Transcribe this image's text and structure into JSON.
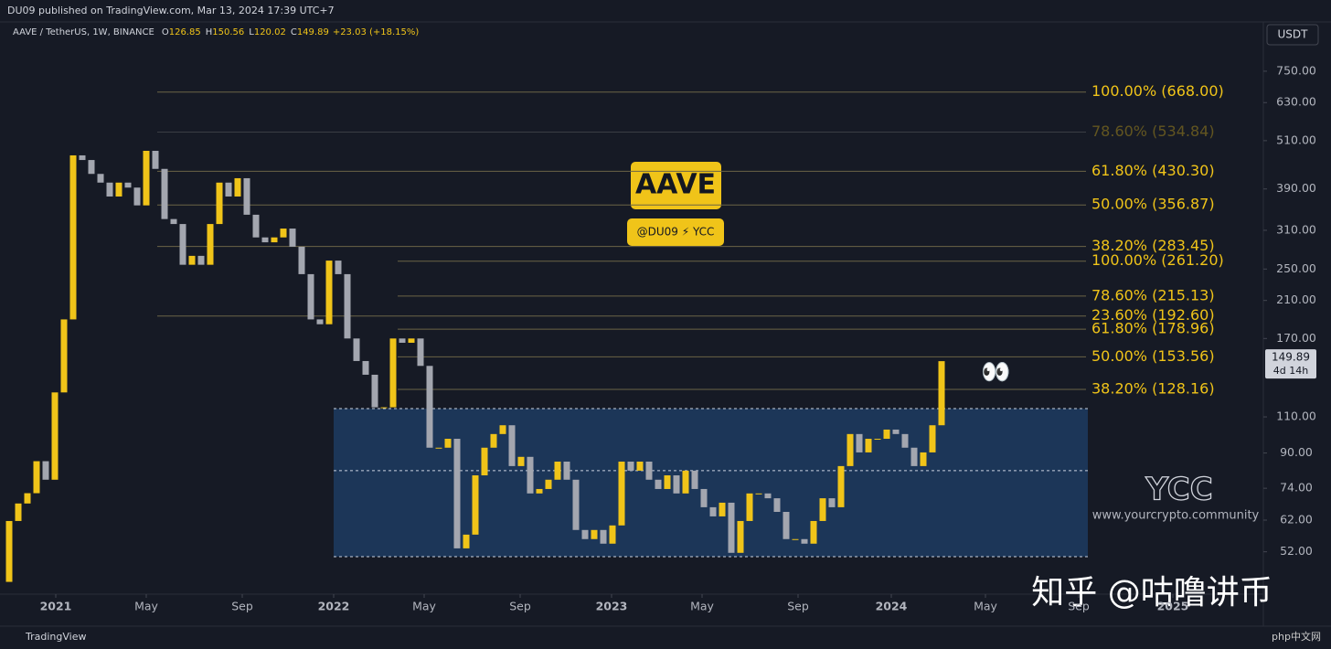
{
  "header": "DU09 published on TradingView.com, Mar 13, 2024 17:39 UTC+7",
  "legend": {
    "symbol": "AAVE / TetherUS, 1W, BINANCE",
    "items": [
      {
        "key": "O",
        "value": "126.85"
      },
      {
        "key": "H",
        "value": "150.56"
      },
      {
        "key": "L",
        "value": "120.02"
      },
      {
        "key": "C",
        "value": "149.89"
      }
    ],
    "change": "+23.03 (+18.15%)"
  },
  "badge": {
    "title": "AAVE",
    "subtitle": "@DU09 ⚡ YCC"
  },
  "watermark": {
    "logo": "YCC",
    "site": "www.yourcrypto.community",
    "zhihu": "知乎 @咕噜讲币",
    "php": "php中文网"
  },
  "emoji": "👀",
  "footer": "TradingView",
  "chart_data": {
    "type": "candlestick",
    "currency": "USDT",
    "up_color": "#f0c419",
    "down_color": "#a3a6af",
    "log_scale": true,
    "values": [
      44,
      61.7,
      68,
      72,
      86,
      77.6,
      126,
      189,
      470,
      458,
      424,
      404,
      374,
      404,
      393,
      356,
      482,
      436,
      330,
      321,
      256,
      269,
      256,
      321,
      404,
      374,
      414,
      338,
      298,
      290,
      298,
      313,
      283,
      243,
      189,
      184,
      262,
      243,
      170,
      150,
      139,
      116,
      116,
      170,
      166,
      170,
      146,
      92.7,
      92.7,
      97.4,
      53,
      57.2,
      79.5,
      92.7,
      100,
      105,
      83.7,
      88.1,
      71.9,
      73.7,
      77.6,
      85.8,
      77.6,
      58.7,
      55.8,
      58.7,
      54.4,
      60.2,
      85.8,
      81.6,
      85.8,
      77.6,
      73.7,
      79.5,
      71.9,
      81.6,
      73.7,
      66.6,
      63.3,
      68.3,
      51.7,
      61.7,
      71.9,
      71.9,
      70,
      64.9,
      55.8,
      55.8,
      54.4,
      61.7,
      70,
      66.6,
      83.7,
      100,
      90.3,
      97.4,
      97.4,
      102.5,
      100,
      92.7,
      83.7,
      90.3,
      105,
      149.89
    ],
    "last_price": {
      "value": 149.89,
      "label": "149.89",
      "countdown": "4d 14h"
    },
    "xlim": [
      0,
      138
    ],
    "xticks": [
      {
        "value": 6.1,
        "label": "2021"
      },
      {
        "value": 16,
        "label": "May"
      },
      {
        "value": 26.5,
        "label": "Sep"
      },
      {
        "value": 36.5,
        "label": "2022"
      },
      {
        "value": 46.4,
        "label": "May"
      },
      {
        "value": 56.9,
        "label": "Sep"
      },
      {
        "value": 66.9,
        "label": "2023"
      },
      {
        "value": 76.8,
        "label": "May"
      },
      {
        "value": 87.3,
        "label": "Sep"
      },
      {
        "value": 97.5,
        "label": "2024"
      },
      {
        "value": 107.8,
        "label": "May"
      },
      {
        "value": 118,
        "label": "Sep"
      },
      {
        "value": 128.3,
        "label": "2025"
      }
    ],
    "ylim": [
      41.1,
      986
    ],
    "yticks": [
      {
        "value": 750,
        "label": "750.00"
      },
      {
        "value": 630,
        "label": "630.00"
      },
      {
        "value": 510,
        "label": "510.00"
      },
      {
        "value": 390,
        "label": "390.00"
      },
      {
        "value": 310,
        "label": "310.00"
      },
      {
        "value": 250,
        "label": "250.00"
      },
      {
        "value": 210,
        "label": "210.00"
      },
      {
        "value": 170,
        "label": "170.00"
      },
      {
        "value": 110,
        "label": "110.00"
      },
      {
        "value": 90,
        "label": "90.00"
      },
      {
        "value": 74,
        "label": "74.00"
      },
      {
        "value": 62,
        "label": "62.00"
      },
      {
        "value": 52,
        "label": "52.00"
      }
    ],
    "zone": {
      "top": 115.2,
      "mid": 81.6,
      "bottom": 50.6
    },
    "fib_sets": [
      {
        "levels": [
          {
            "value": 668,
            "label": "100.00% (668.00)"
          },
          {
            "value": 534.84,
            "label": "78.60% (534.84)",
            "faded": true
          },
          {
            "value": 430.3,
            "label": "61.80% (430.30)"
          },
          {
            "value": 356.87,
            "label": "50.00% (356.87)"
          },
          {
            "value": 283.45,
            "label": "38.20% (283.45)"
          },
          {
            "value": 192.6,
            "label": "23.60% (192.60)"
          }
        ]
      },
      {
        "levels": [
          {
            "value": 261.2,
            "label": "100.00% (261.20)"
          },
          {
            "value": 215.13,
            "label": "78.60% (215.13)"
          },
          {
            "value": 178.96,
            "label": "61.80% (178.96)"
          },
          {
            "value": 153.56,
            "label": "50.00% (153.56)"
          },
          {
            "value": 128.16,
            "label": "38.20% (128.16)"
          }
        ]
      }
    ]
  }
}
